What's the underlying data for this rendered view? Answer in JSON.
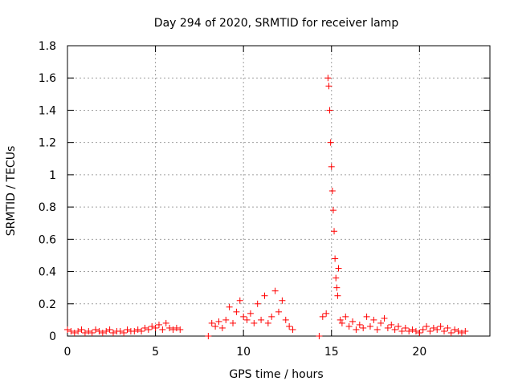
{
  "chart_data": {
    "type": "scatter",
    "title": "Day 294 of 2020, SRMTID for receiver lamp",
    "xlabel": "GPS time / hours",
    "ylabel": "SRMTID / TECUs",
    "xlim": [
      0,
      24
    ],
    "ylim": [
      0,
      1.8
    ],
    "xticks": [
      0,
      5,
      10,
      15,
      20
    ],
    "xtick_labels": [
      "0",
      "5",
      "10",
      "15",
      "20"
    ],
    "yticks": [
      0,
      0.2,
      0.4,
      0.6,
      0.8,
      1.0,
      1.2,
      1.4,
      1.6,
      1.8
    ],
    "ytick_labels": [
      "0",
      "0.2",
      "0.4",
      "0.6",
      "0.8",
      "1",
      "1.2",
      "1.4",
      "1.6",
      "1.8"
    ],
    "grid": true,
    "marker": "plus",
    "color": "#ff0000",
    "series": [
      {
        "name": "SRMTID",
        "x": [
          0.0,
          0.2,
          0.4,
          0.6,
          0.8,
          1.0,
          1.2,
          1.4,
          1.6,
          1.8,
          2.0,
          2.2,
          2.4,
          2.6,
          2.8,
          3.0,
          3.2,
          3.4,
          3.6,
          3.8,
          4.0,
          4.2,
          4.4,
          4.6,
          4.8,
          5.0,
          5.2,
          5.4,
          5.6,
          5.8,
          6.0,
          6.2,
          6.4,
          8.0,
          8.2,
          8.4,
          8.6,
          8.8,
          9.0,
          9.2,
          9.4,
          9.6,
          9.8,
          10.0,
          10.2,
          10.4,
          10.6,
          10.8,
          11.0,
          11.2,
          11.4,
          11.6,
          11.8,
          12.0,
          12.2,
          12.4,
          12.6,
          12.8,
          14.3,
          14.5,
          14.7,
          14.8,
          14.85,
          14.9,
          14.95,
          15.0,
          15.05,
          15.1,
          15.15,
          15.2,
          15.25,
          15.3,
          15.35,
          15.4,
          15.5,
          15.6,
          15.8,
          16.0,
          16.2,
          16.4,
          16.6,
          16.8,
          17.0,
          17.2,
          17.4,
          17.6,
          17.8,
          18.0,
          18.2,
          18.4,
          18.6,
          18.8,
          19.0,
          19.2,
          19.4,
          19.6,
          19.8,
          20.0,
          20.2,
          20.4,
          20.6,
          20.8,
          21.0,
          21.2,
          21.4,
          21.6,
          21.8,
          22.0,
          22.2,
          22.4,
          22.6
        ],
        "y": [
          0.04,
          0.03,
          0.02,
          0.03,
          0.04,
          0.02,
          0.03,
          0.02,
          0.04,
          0.03,
          0.02,
          0.03,
          0.04,
          0.02,
          0.03,
          0.03,
          0.02,
          0.04,
          0.03,
          0.03,
          0.04,
          0.03,
          0.05,
          0.04,
          0.06,
          0.05,
          0.07,
          0.04,
          0.08,
          0.05,
          0.04,
          0.05,
          0.04,
          0.0,
          0.08,
          0.06,
          0.09,
          0.05,
          0.1,
          0.18,
          0.08,
          0.15,
          0.22,
          0.12,
          0.1,
          0.14,
          0.08,
          0.2,
          0.1,
          0.25,
          0.08,
          0.12,
          0.28,
          0.15,
          0.22,
          0.1,
          0.06,
          0.04,
          0.0,
          0.12,
          0.14,
          1.6,
          1.55,
          1.4,
          1.2,
          1.05,
          0.9,
          0.78,
          0.65,
          0.48,
          0.36,
          0.3,
          0.25,
          0.42,
          0.1,
          0.08,
          0.12,
          0.06,
          0.09,
          0.04,
          0.07,
          0.05,
          0.12,
          0.06,
          0.1,
          0.04,
          0.08,
          0.11,
          0.05,
          0.07,
          0.04,
          0.06,
          0.03,
          0.05,
          0.03,
          0.04,
          0.03,
          0.02,
          0.04,
          0.06,
          0.03,
          0.05,
          0.04,
          0.06,
          0.03,
          0.05,
          0.02,
          0.04,
          0.03,
          0.02,
          0.03
        ]
      }
    ]
  }
}
